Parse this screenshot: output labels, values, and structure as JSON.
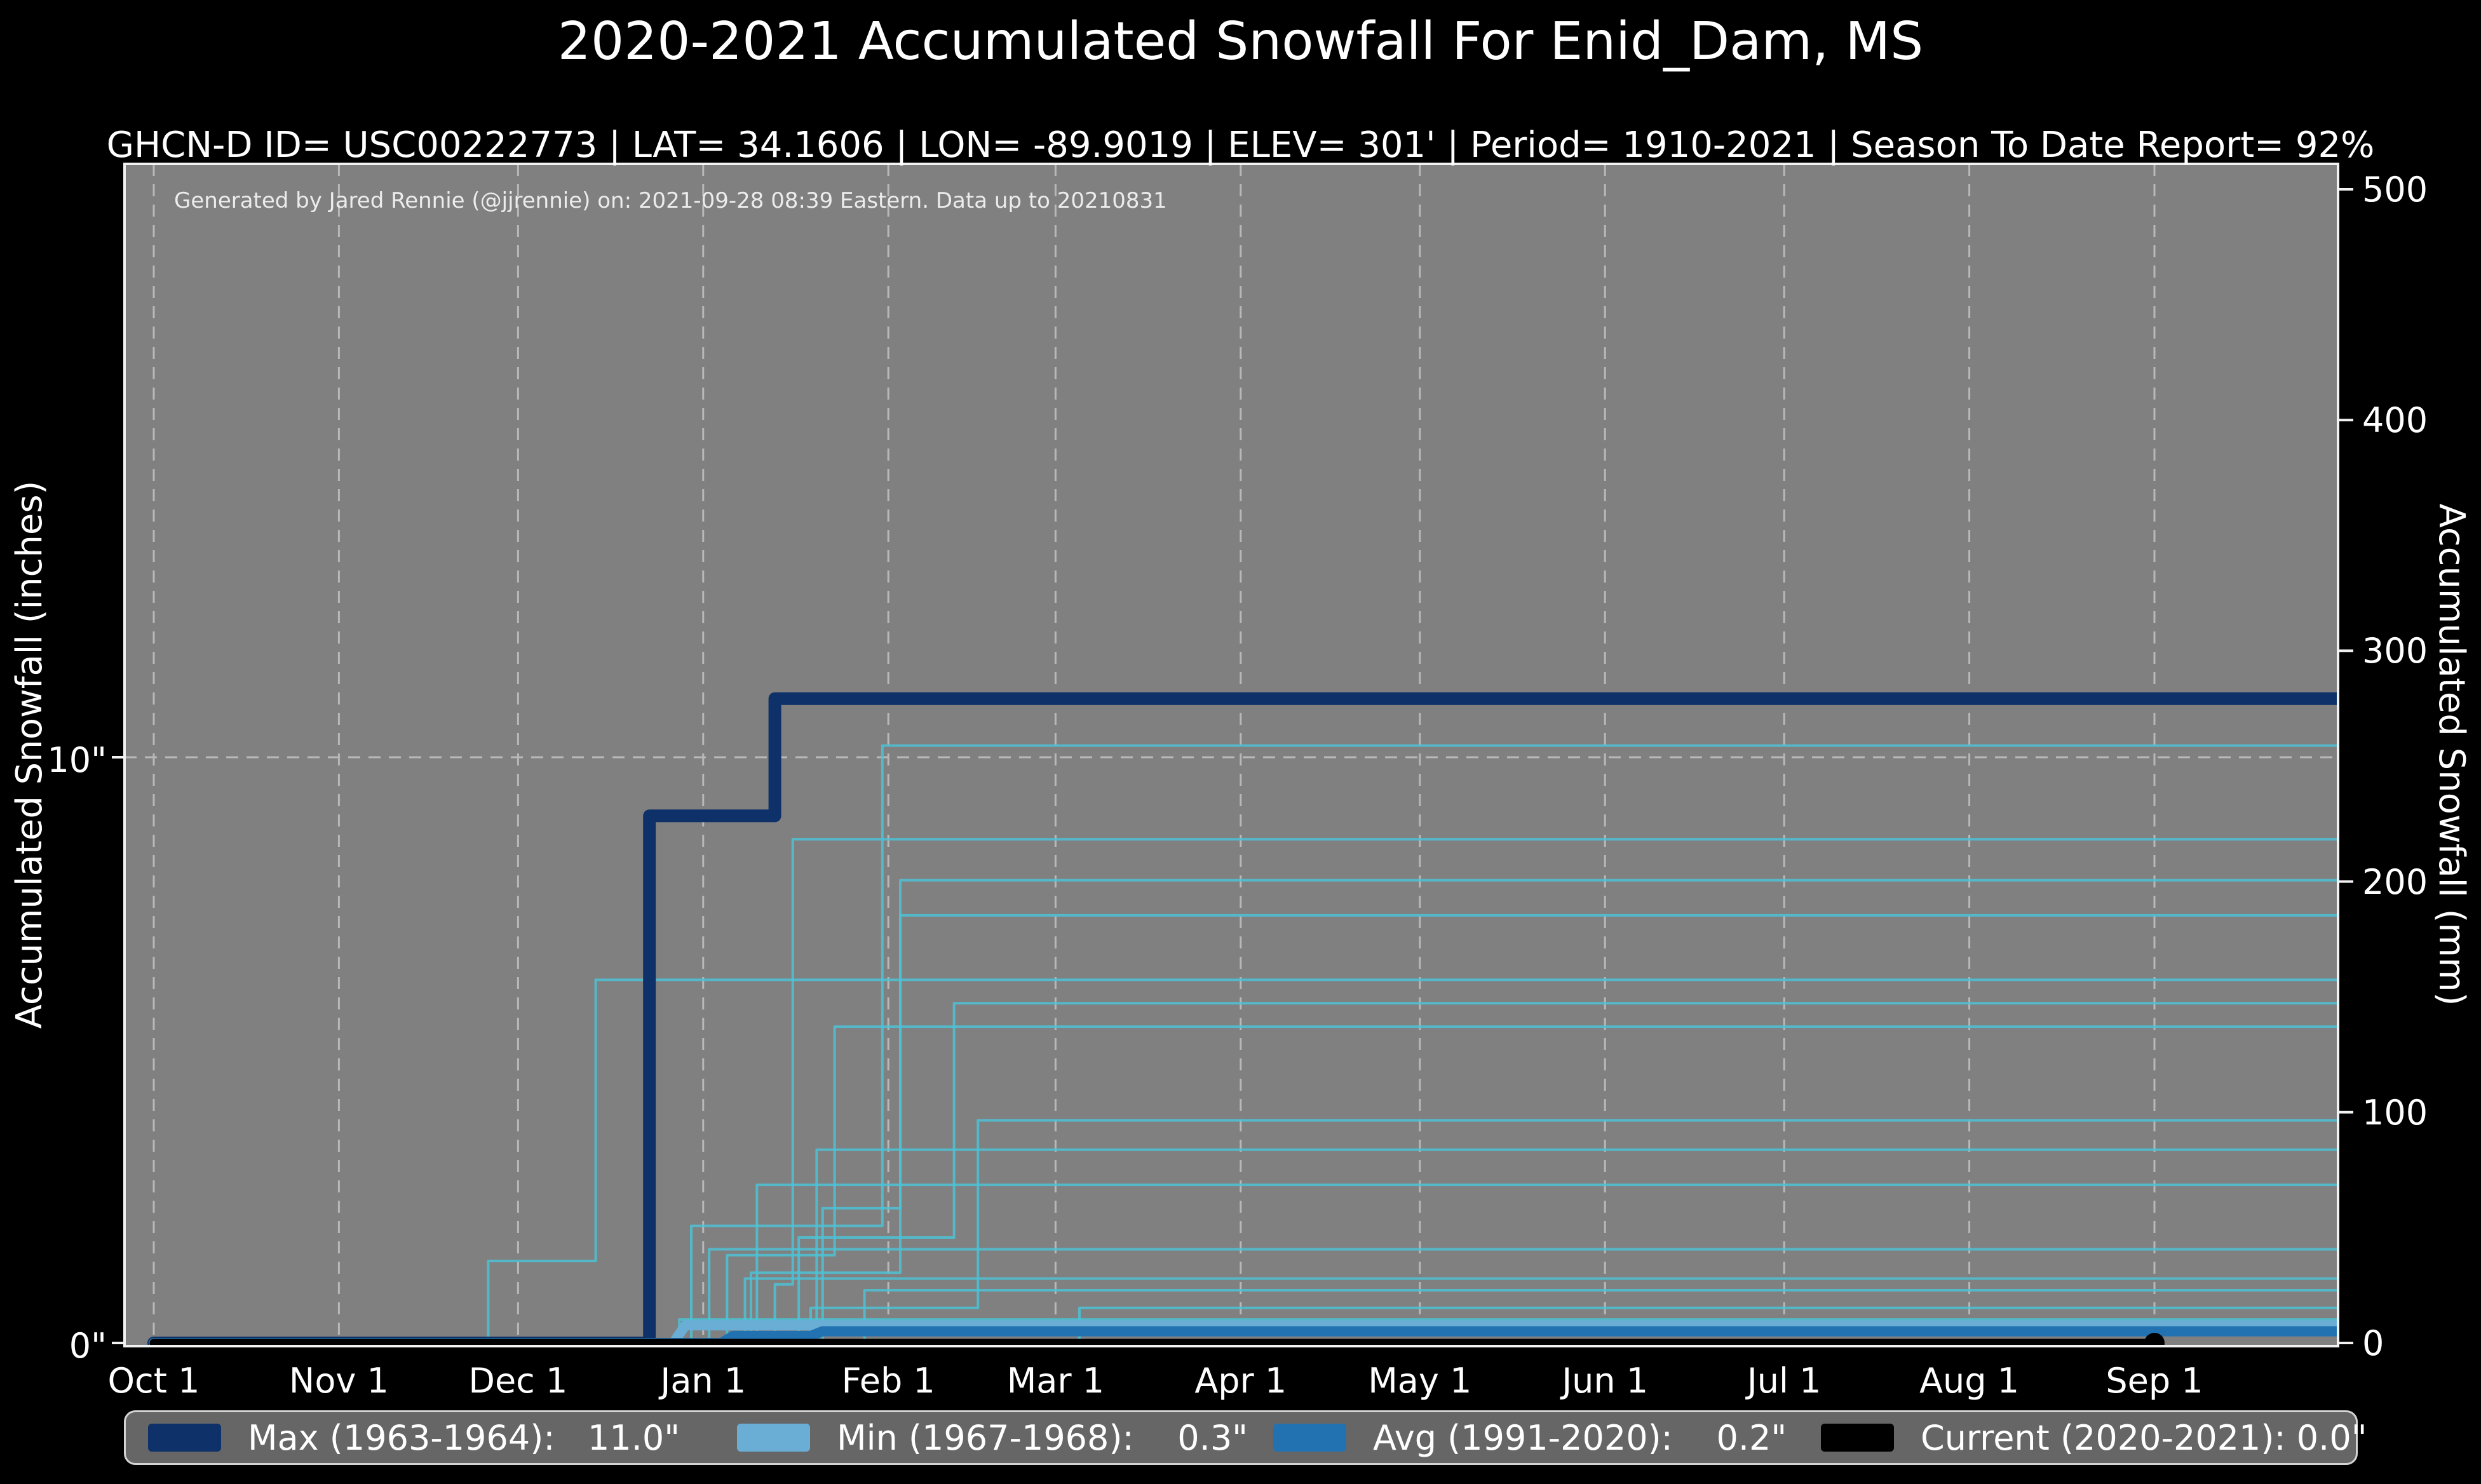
{
  "figure": {
    "title": "2020-2021 Accumulated Snowfall For Enid_Dam, MS",
    "subtitle": "GHCN-D ID= USC00222773 | LAT= 34.1606 | LON= -89.9019 | ELEV= 301' | Period= 1910-2021 | Season To Date Report= 92%",
    "annotation": "Generated by Jared Rennie (@jjrennie) on: 2021-09-28 08:39 Eastern. Data up to 20210831"
  },
  "axes": {
    "x": {
      "tick_labels": [
        "Oct 1",
        "Nov 1",
        "Dec 1",
        "Jan 1",
        "Feb 1",
        "Mar 1",
        "Apr 1",
        "May 1",
        "Jun 1",
        "Jul 1",
        "Aug 1",
        "Sep 1"
      ],
      "tick_days": [
        0,
        31,
        61,
        92,
        123,
        151,
        182,
        212,
        243,
        273,
        304,
        335
      ]
    },
    "y_left": {
      "label": "Accumulated Snowfall (inches)",
      "ticks": [
        {
          "label": "0\"",
          "inches": 0
        },
        {
          "label": "10\"",
          "inches": 10
        }
      ]
    },
    "y_right": {
      "label": "Accumulated Snowfall (mm)",
      "ticks_mm": [
        0,
        100,
        200,
        300,
        400,
        500
      ]
    }
  },
  "legend": {
    "items": [
      {
        "label": "Max (1963-1964):   11.0\"",
        "color": "#0d3168"
      },
      {
        "label": "Min (1967-1968):    0.3\"",
        "color": "#6aaed6"
      },
      {
        "label": "Avg (1991-2020):    0.2\"",
        "color": "#2272b2"
      },
      {
        "label": "Current (2020-2021): 0.0\"",
        "color": "#000000"
      }
    ]
  },
  "theme": {
    "figure_bg": "#000000",
    "plot_bg": "#808080",
    "grid_color": "#b8b8b8",
    "spine_color": "#f2f2f2",
    "text_color": "#ffffff",
    "legend_bg": "#666666",
    "legend_border": "#d4d4d4"
  },
  "chart_data": {
    "type": "line",
    "title": "2020-2021 Accumulated Snowfall For Enid_Dam, MS",
    "x_unit": "days since Oct 1",
    "x_range_days": [
      0,
      366
    ],
    "y_left_label": "Accumulated Snowfall (inches)",
    "y_left_range_inches": [
      0,
      20.1
    ],
    "y_right_label": "Accumulated Snowfall (mm)",
    "y_right_range_mm": [
      0,
      511
    ],
    "grid": true,
    "legend_position": "bottom",
    "series": [
      {
        "name": "Max (1963-1964)",
        "final_inches": 11.0,
        "color": "#0d3168",
        "width": 20,
        "points": [
          [
            0,
            0
          ],
          [
            83,
            0
          ],
          [
            83,
            9.0
          ],
          [
            104,
            9.0
          ],
          [
            104,
            11.0
          ],
          [
            366,
            11.0
          ]
        ]
      },
      {
        "name": "Min (1967-1968)",
        "final_inches": 0.3,
        "color": "#6aaed6",
        "width": 16,
        "points": [
          [
            0,
            0
          ],
          [
            87,
            0
          ],
          [
            89,
            0.3
          ],
          [
            366,
            0.3
          ]
        ]
      },
      {
        "name": "Avg (1991-2020)",
        "final_inches": 0.2,
        "color": "#2272b2",
        "width": 16,
        "points": [
          [
            0,
            0
          ],
          [
            95,
            0
          ],
          [
            97,
            0.12
          ],
          [
            110,
            0.12
          ],
          [
            112,
            0.2
          ],
          [
            366,
            0.2
          ]
        ]
      },
      {
        "name": "Current (2020-2021)",
        "final_inches": 0.0,
        "color": "#000000",
        "width": 13,
        "end_marker": true,
        "points": [
          [
            0,
            0
          ],
          [
            335,
            0
          ]
        ]
      }
    ],
    "other_years": {
      "color": "#4cc2d6",
      "width": 4,
      "opacity": 0.85,
      "lines": [
        [
          [
            56,
            0
          ],
          [
            56,
            1.4
          ],
          [
            74,
            1.4
          ],
          [
            74,
            6.2
          ],
          [
            366,
            6.2
          ]
        ],
        [
          [
            90,
            0
          ],
          [
            90,
            2.0
          ],
          [
            122,
            2.0
          ],
          [
            122,
            10.2
          ],
          [
            366,
            10.2
          ]
        ],
        [
          [
            104,
            0
          ],
          [
            104,
            1.0
          ],
          [
            107,
            1.0
          ],
          [
            107,
            8.6
          ],
          [
            366,
            8.6
          ]
        ],
        [
          [
            100,
            0
          ],
          [
            100,
            1.2
          ],
          [
            125,
            1.2
          ],
          [
            125,
            7.9
          ],
          [
            366,
            7.9
          ]
        ],
        [
          [
            112,
            0
          ],
          [
            112,
            2.3
          ],
          [
            125,
            2.3
          ],
          [
            125,
            7.3
          ],
          [
            366,
            7.3
          ]
        ],
        [
          [
            108,
            0
          ],
          [
            108,
            1.8
          ],
          [
            134,
            1.8
          ],
          [
            134,
            5.8
          ],
          [
            366,
            5.8
          ]
        ],
        [
          [
            96,
            0
          ],
          [
            96,
            1.5
          ],
          [
            114,
            1.5
          ],
          [
            114,
            5.4
          ],
          [
            366,
            5.4
          ]
        ],
        [
          [
            110,
            0
          ],
          [
            110,
            0.6
          ],
          [
            138,
            0.6
          ],
          [
            138,
            3.8
          ],
          [
            366,
            3.8
          ]
        ],
        [
          [
            111,
            0
          ],
          [
            111,
            3.3
          ],
          [
            366,
            3.3
          ]
        ],
        [
          [
            101,
            0
          ],
          [
            101,
            2.7
          ],
          [
            366,
            2.7
          ]
        ],
        [
          [
            93,
            0
          ],
          [
            93,
            1.6
          ],
          [
            366,
            1.6
          ]
        ],
        [
          [
            99,
            0
          ],
          [
            99,
            1.1
          ],
          [
            366,
            1.1
          ]
        ],
        [
          [
            119,
            0
          ],
          [
            119,
            0.9
          ],
          [
            366,
            0.9
          ]
        ],
        [
          [
            155,
            0
          ],
          [
            155,
            0.6
          ],
          [
            366,
            0.6
          ]
        ],
        [
          [
            88,
            0
          ],
          [
            88,
            0.4
          ],
          [
            366,
            0.4
          ]
        ]
      ]
    }
  }
}
